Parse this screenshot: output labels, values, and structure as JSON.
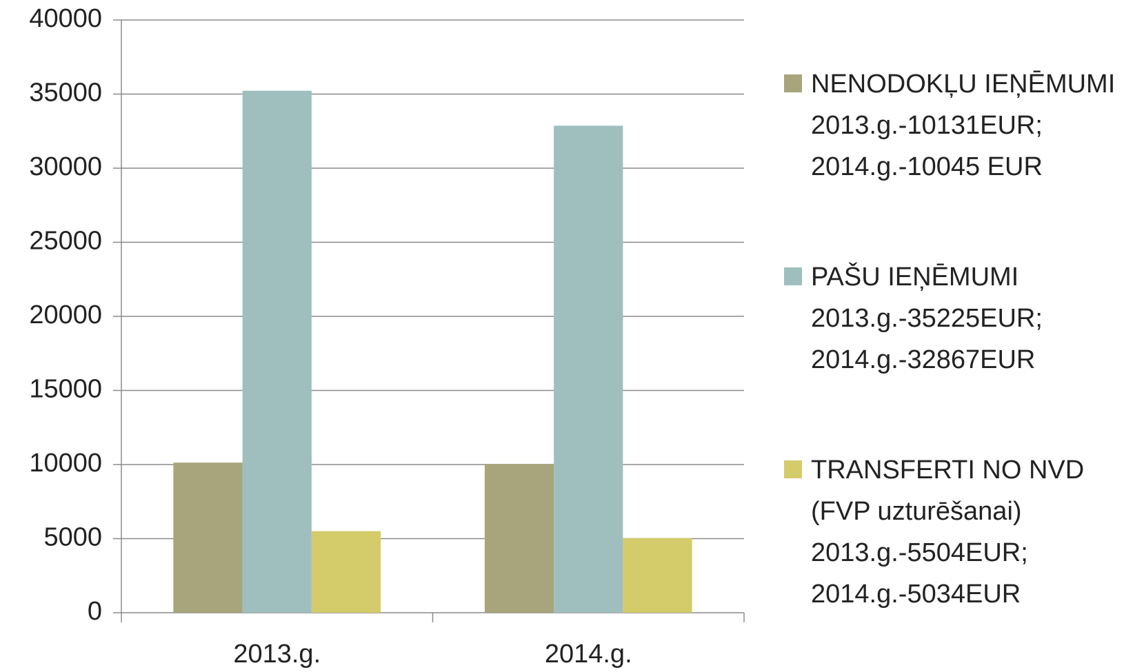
{
  "chart_data": {
    "type": "bar",
    "categories": [
      "2013.g.",
      "2014.g."
    ],
    "series": [
      {
        "name": "NENODOKĻU IEŅĒMUMI\n2013.g.-10131EUR;\n2014.g.-10045 EUR",
        "color": "#a8a47c",
        "values": [
          10131,
          10045
        ]
      },
      {
        "name": "PAŠU IEŅĒMUMI\n2013.g.-35225EUR;\n2014.g.-32867EUR",
        "color": "#9fbfbe",
        "values": [
          35225,
          32867
        ]
      },
      {
        "name": "TRANSFERTI NO NVD\n(FVP uzturēšanai)\n2013.g.-5504EUR;\n2014.g.-5034EUR",
        "color": "#d4cb6a",
        "values": [
          5504,
          5034
        ]
      }
    ],
    "ylim": [
      0,
      40000
    ],
    "yticks": [
      0,
      5000,
      10000,
      15000,
      20000,
      25000,
      30000,
      35000,
      40000
    ],
    "grid": true,
    "legend": "right"
  }
}
